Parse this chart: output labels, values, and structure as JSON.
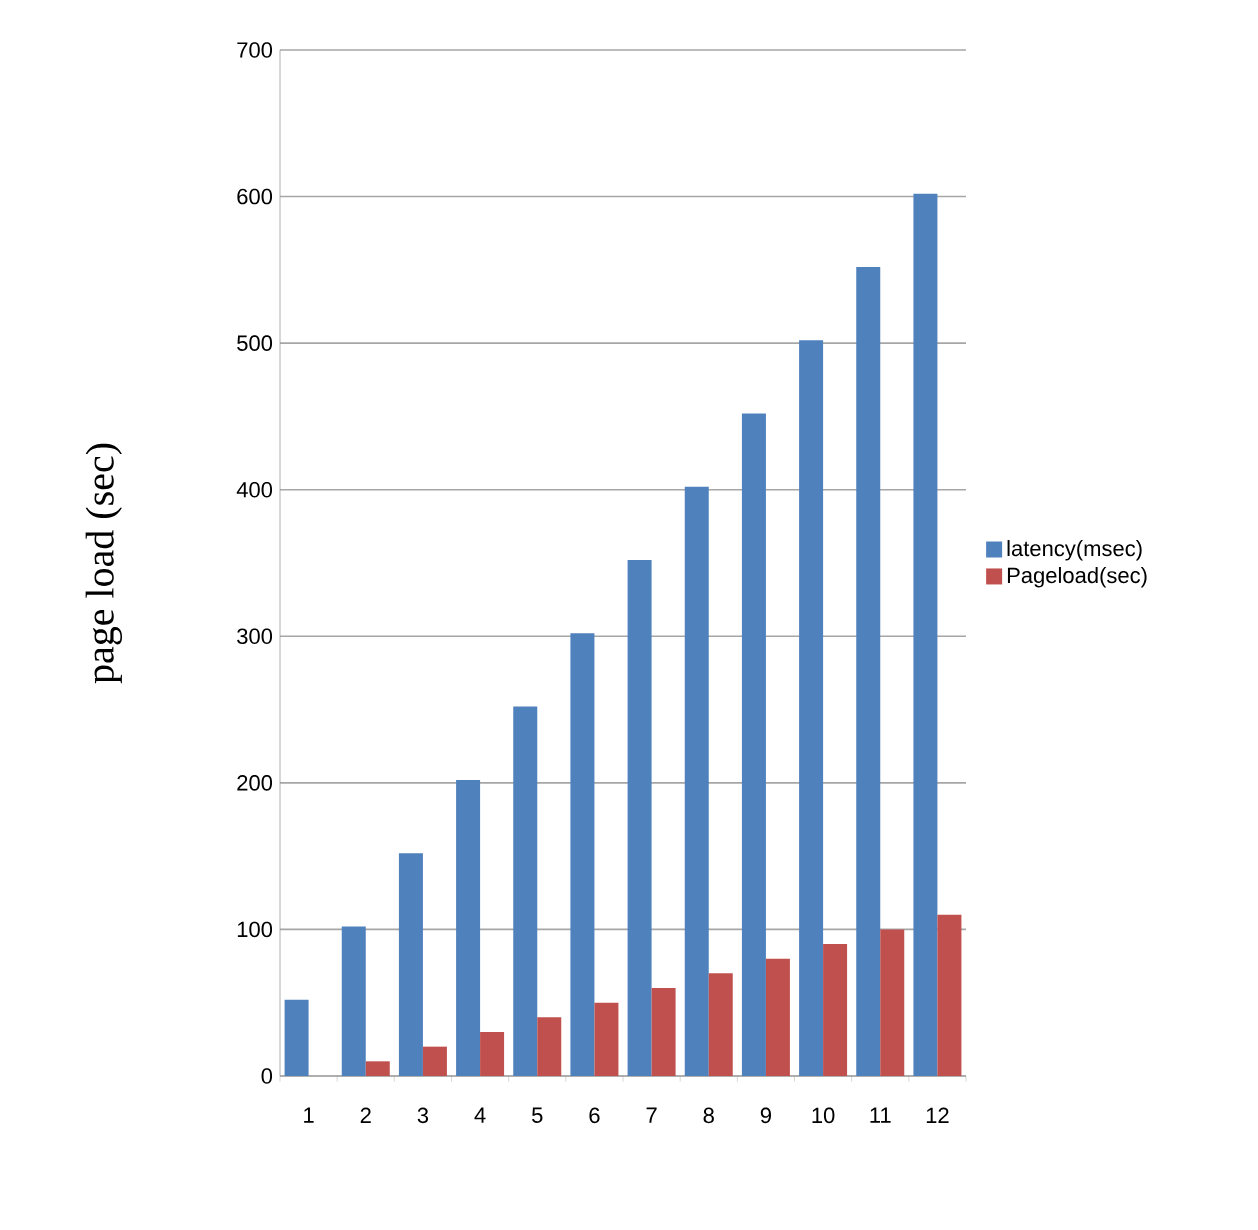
{
  "chart_data": {
    "type": "bar",
    "ylabel": "page load (sec)",
    "categories": [
      "1",
      "2",
      "3",
      "4",
      "5",
      "6",
      "7",
      "8",
      "9",
      "10",
      "11",
      "12"
    ],
    "series": [
      {
        "name": "latency(msec)",
        "color": "#4f81bd",
        "values": [
          52,
          102,
          152,
          202,
          252,
          302,
          352,
          402,
          452,
          502,
          552,
          602
        ]
      },
      {
        "name": "Pageload(sec)",
        "color": "#c0504d",
        "values": [
          0,
          10,
          20,
          30,
          40,
          50,
          60,
          70,
          80,
          90,
          100,
          110
        ]
      }
    ],
    "ylim": [
      0,
      700
    ],
    "yticks": [
      0,
      100,
      200,
      300,
      400,
      500,
      600,
      700
    ],
    "grid": "y",
    "legend": "right"
  }
}
